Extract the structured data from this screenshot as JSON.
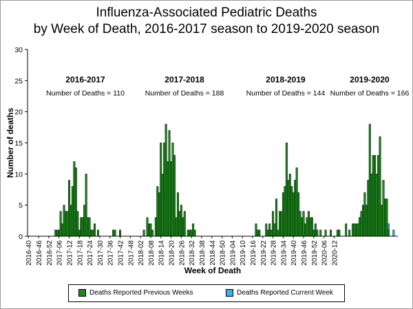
{
  "chart_data": {
    "type": "bar",
    "title_line1": "Influenza-Associated Pediatric Deaths",
    "title_line2": "by Week of Death, 2016-2017 season to 2019-2020 season",
    "xlabel": "Week of Death",
    "ylabel": "Number of deaths",
    "ylim": [
      0,
      30
    ],
    "yticks": [
      0,
      5,
      10,
      15,
      20,
      25,
      30
    ],
    "grid": false,
    "xtick_labels": [
      "2016-40",
      "2016-46",
      "2016-52",
      "2017-06",
      "2017-12",
      "2017-18",
      "2017-24",
      "2017-30",
      "2017-36",
      "2017-42",
      "2017-48",
      "2018-02",
      "2018-08",
      "2018-14",
      "2018-20",
      "2018-26",
      "2018-32",
      "2018-38",
      "2018-44",
      "2018-50",
      "2019-04",
      "2019-10",
      "2019-16",
      "2019-22",
      "2019-28",
      "2019-34",
      "2019-40",
      "2019-46",
      "2019-52",
      "2020-06",
      "2020-12"
    ],
    "seasons": [
      {
        "label": "2016-2017",
        "deaths_text": "Number of Deaths = 110"
      },
      {
        "label": "2017-2018",
        "deaths_text": "Number of Deaths = 188"
      },
      {
        "label": "2018-2019",
        "deaths_text": "Number of Deaths = 144"
      },
      {
        "label": "2019-2020",
        "deaths_text": "Number of Deaths = 166"
      }
    ],
    "series": [
      {
        "name": "Deaths Reported Previous Weeks",
        "color": "#1a8a1a",
        "values": [
          0,
          0,
          0,
          0,
          0,
          0,
          0,
          0,
          0,
          0,
          0,
          0,
          0,
          0,
          0,
          0,
          1,
          1,
          1,
          4,
          2,
          5,
          4,
          4,
          9,
          5,
          8,
          12,
          11,
          4,
          1,
          3,
          3,
          5,
          10,
          3,
          3,
          1,
          1,
          2,
          0,
          1,
          0,
          0,
          0,
          0,
          0,
          0,
          0,
          0,
          1,
          1,
          0,
          0,
          1,
          0,
          0,
          0,
          0,
          0,
          0,
          0,
          0,
          0,
          0,
          0,
          0,
          0,
          1,
          0,
          3,
          2,
          2,
          1,
          0,
          3,
          8,
          7,
          15,
          10,
          15,
          18,
          12,
          17,
          12,
          15,
          13,
          3,
          7,
          4,
          5,
          3,
          4,
          0,
          1,
          1,
          1,
          2,
          1,
          0,
          0,
          0,
          0,
          0,
          0,
          0,
          0,
          0,
          0,
          0,
          0,
          0,
          0,
          0,
          0,
          0,
          0,
          0,
          0,
          0,
          0,
          0,
          0,
          0,
          0,
          0,
          0,
          0,
          0,
          0,
          0,
          0,
          0,
          0,
          2,
          1,
          1,
          0,
          0,
          0,
          2,
          1,
          2,
          1,
          4,
          2,
          6,
          1,
          4,
          4,
          7,
          8,
          15,
          9,
          10,
          8,
          7,
          9,
          11,
          7,
          4,
          3,
          4,
          2,
          3,
          4,
          3,
          3,
          1,
          2,
          1,
          0,
          1,
          0,
          0,
          1,
          0,
          0,
          1,
          0,
          0,
          0,
          1,
          1,
          0,
          0,
          0,
          2,
          0,
          1,
          0,
          2,
          2,
          2,
          2,
          3,
          4,
          5,
          7,
          5,
          9,
          18,
          10,
          13,
          13,
          10,
          13,
          16,
          5,
          9,
          6,
          6,
          1,
          0,
          0,
          0,
          0,
          0
        ]
      },
      {
        "name": "Deaths Reported Current Week",
        "color": "#33b5e5",
        "values": [
          0,
          0,
          0,
          0,
          0,
          0,
          0,
          0,
          0,
          0,
          0,
          0,
          0,
          0,
          0,
          0,
          0,
          0,
          0,
          0,
          0,
          0,
          0,
          0,
          0,
          0,
          0,
          0,
          0,
          0,
          0,
          0,
          0,
          0,
          0,
          0,
          0,
          0,
          0,
          0,
          0,
          0,
          0,
          0,
          0,
          0,
          0,
          0,
          0,
          0,
          0,
          0,
          0,
          0,
          0,
          0,
          0,
          0,
          0,
          0,
          0,
          0,
          0,
          0,
          0,
          0,
          0,
          0,
          0,
          0,
          0,
          0,
          0,
          0,
          0,
          0,
          0,
          0,
          0,
          0,
          0,
          0,
          0,
          0,
          0,
          0,
          0,
          0,
          0,
          0,
          0,
          0,
          0,
          0,
          0,
          0,
          0,
          0,
          0,
          0,
          0,
          0,
          0,
          0,
          0,
          0,
          0,
          0,
          0,
          0,
          0,
          0,
          0,
          0,
          0,
          0,
          0,
          0,
          0,
          0,
          0,
          0,
          0,
          0,
          0,
          0,
          0,
          0,
          0,
          0,
          0,
          0,
          0,
          0,
          0,
          0,
          0,
          0,
          0,
          0,
          0,
          0,
          0,
          0,
          0,
          0,
          0,
          0,
          0,
          0,
          0,
          0,
          0,
          0,
          0,
          0,
          0,
          0,
          0,
          0,
          0,
          0,
          0,
          0,
          0,
          0,
          0,
          0,
          0,
          0,
          0,
          0,
          0,
          0,
          0,
          0,
          0,
          0,
          0,
          0,
          0,
          0,
          0,
          0,
          0,
          0,
          0,
          0,
          0,
          0,
          0,
          0,
          0,
          0,
          0,
          0,
          0,
          0,
          0,
          0,
          0,
          0,
          0,
          0,
          0,
          0,
          0,
          0,
          0,
          0,
          0,
          0,
          1,
          0,
          0,
          1,
          0,
          0,
          2,
          1,
          1
        ]
      }
    ],
    "legend_placement": "bottom"
  }
}
